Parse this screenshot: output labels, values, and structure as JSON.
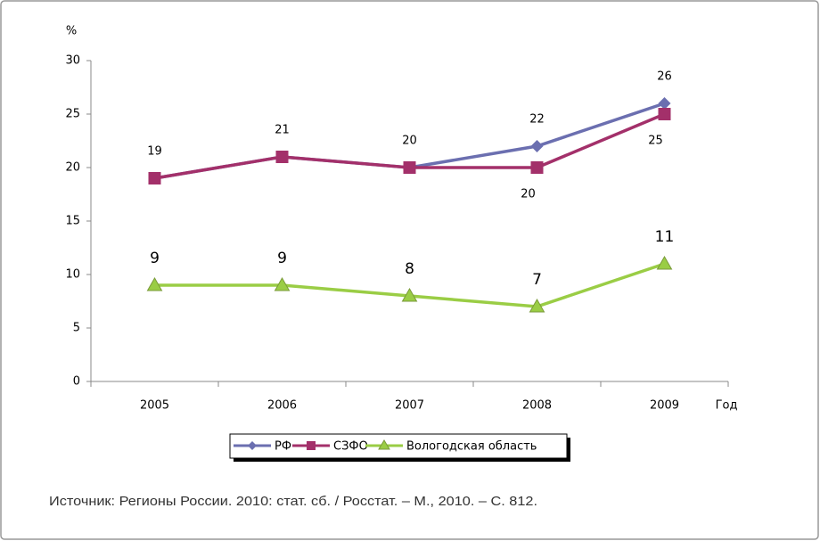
{
  "chart_data": {
    "type": "line",
    "y_label": "%",
    "x_label": "Год",
    "categories": [
      "2005",
      "2006",
      "2007",
      "2008",
      "2009"
    ],
    "series": [
      {
        "name": "РФ",
        "color": "#6b6fb0",
        "marker": "diamond",
        "values": [
          19,
          21,
          20,
          22,
          26
        ]
      },
      {
        "name": "СЗФО",
        "color": "#a3306a",
        "marker": "square",
        "values": [
          19,
          21,
          20,
          20,
          25
        ]
      },
      {
        "name": "Вологодская область",
        "color": "#9acd45",
        "marker": "triangle",
        "values": [
          9,
          9,
          8,
          7,
          11
        ]
      }
    ],
    "ylim": [
      0,
      30
    ],
    "yticks": [
      0,
      5,
      10,
      15,
      20,
      25,
      30
    ],
    "source": "Источник: Регионы России. 2010: стат. сб. / Росстат. – М., 2010. – С. 812."
  }
}
